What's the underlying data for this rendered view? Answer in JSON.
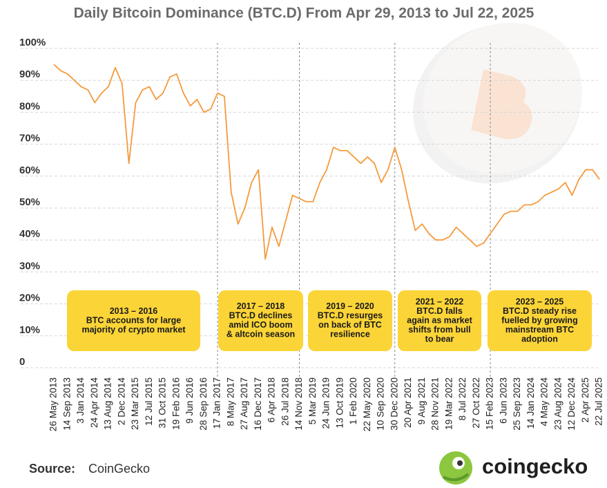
{
  "chart_data": {
    "type": "line",
    "title": "Daily Bitcoin Dominance (BTC.D) From Apr 29, 2013 to Jul 22, 2025",
    "categories": [
      "26 May 2013",
      null,
      "14 Sep 2013",
      null,
      "3 Jan 2014",
      null,
      "24 Apr 2014",
      null,
      "13 Aug 2014",
      null,
      "2 Dec 2014",
      null,
      "23 Mar 2015",
      null,
      "12 Jul 2015",
      null,
      "31 Oct 2015",
      null,
      "19 Feb 2016",
      null,
      "9 Jun 2016",
      null,
      "28 Sep 2016",
      null,
      "17 Jan 2017",
      null,
      "8 May 2017",
      null,
      "27 Aug 2017",
      null,
      "16 Dec 2017",
      null,
      "6 Apr 2018",
      null,
      "26 Jul 2018",
      null,
      "14 Nov 2018",
      null,
      "5 Mar 2019",
      null,
      "24 Jun 2019",
      null,
      "13 Oct 2019",
      null,
      "1 Feb 2020",
      null,
      "22 May 2020",
      null,
      "10 Sep 2020",
      null,
      "30 Dec 2020",
      null,
      "20 Apr 2021",
      null,
      "9 Aug 2021",
      null,
      "28 Nov 2021",
      null,
      "19 Mar 2022",
      null,
      "8 Jul 2022",
      null,
      "27 Oct 2022",
      null,
      "15 Feb 2023",
      null,
      "6 Jun 2023",
      null,
      "25 Sep 2023",
      null,
      "14 Jan 2024",
      null,
      "4 May 2024",
      null,
      "23 Aug 2024",
      null,
      "12 Dec 2024",
      null,
      "2 Apr 2025",
      null,
      "22 Jul 2025"
    ],
    "series": [
      {
        "name": "BTC.D",
        "color": "#f59a3c",
        "values": [
          95,
          93,
          92,
          90,
          88,
          87,
          83,
          86,
          88,
          94,
          89,
          64,
          83,
          87,
          88,
          84,
          86,
          91,
          92,
          86,
          82,
          84,
          80,
          81,
          86,
          85,
          55,
          45,
          50,
          58,
          62,
          34,
          44,
          38,
          46,
          54,
          53,
          52,
          52,
          58,
          62,
          69,
          68,
          68,
          66,
          64,
          66,
          64,
          58,
          62,
          69,
          62,
          52,
          43,
          45,
          42,
          40,
          40,
          41,
          44,
          42,
          40,
          38,
          39,
          42,
          45,
          48,
          49,
          49,
          51,
          51,
          52,
          54,
          55,
          56,
          58,
          54,
          59,
          62,
          62,
          59
        ]
      }
    ],
    "ylim": [
      0,
      100
    ],
    "yticks": [
      0,
      {
        "value": 10,
        "label": "10%"
      },
      {
        "value": 20,
        "label": "20%"
      },
      {
        "value": 30,
        "label": "30%"
      },
      {
        "value": 40,
        "label": "40%"
      },
      {
        "value": 50,
        "label": "50%"
      },
      {
        "value": 60,
        "label": "60%"
      },
      {
        "value": 70,
        "label": "70%"
      },
      {
        "value": 80,
        "label": "80%"
      },
      {
        "value": 90,
        "label": "90%"
      },
      {
        "value": 100,
        "label": "100%"
      }
    ],
    "grid": true,
    "annotations": [
      {
        "period": "2013 – 2016",
        "lines": [
          "BTC accounts for large",
          "majority of crypto market"
        ]
      },
      {
        "period": "2017 – 2018",
        "lines": [
          "BTC.D declines",
          "amid ICO boom",
          "& altcoin season"
        ]
      },
      {
        "period": "2019 – 2020",
        "lines": [
          "BTC.D resurges",
          "on back of BTC",
          "resilience"
        ]
      },
      {
        "period": "2021 – 2022",
        "lines": [
          "BTC.D falls",
          "again as market",
          "shifts from bull",
          "to bear"
        ]
      },
      {
        "period": "2023 – 2025",
        "lines": [
          "BTC.D steady rise",
          "fuelled by growing",
          "mainstream BTC",
          "adoption"
        ]
      }
    ]
  },
  "source": {
    "label": "Source:",
    "name": "CoinGecko"
  },
  "brand": "coingecko"
}
